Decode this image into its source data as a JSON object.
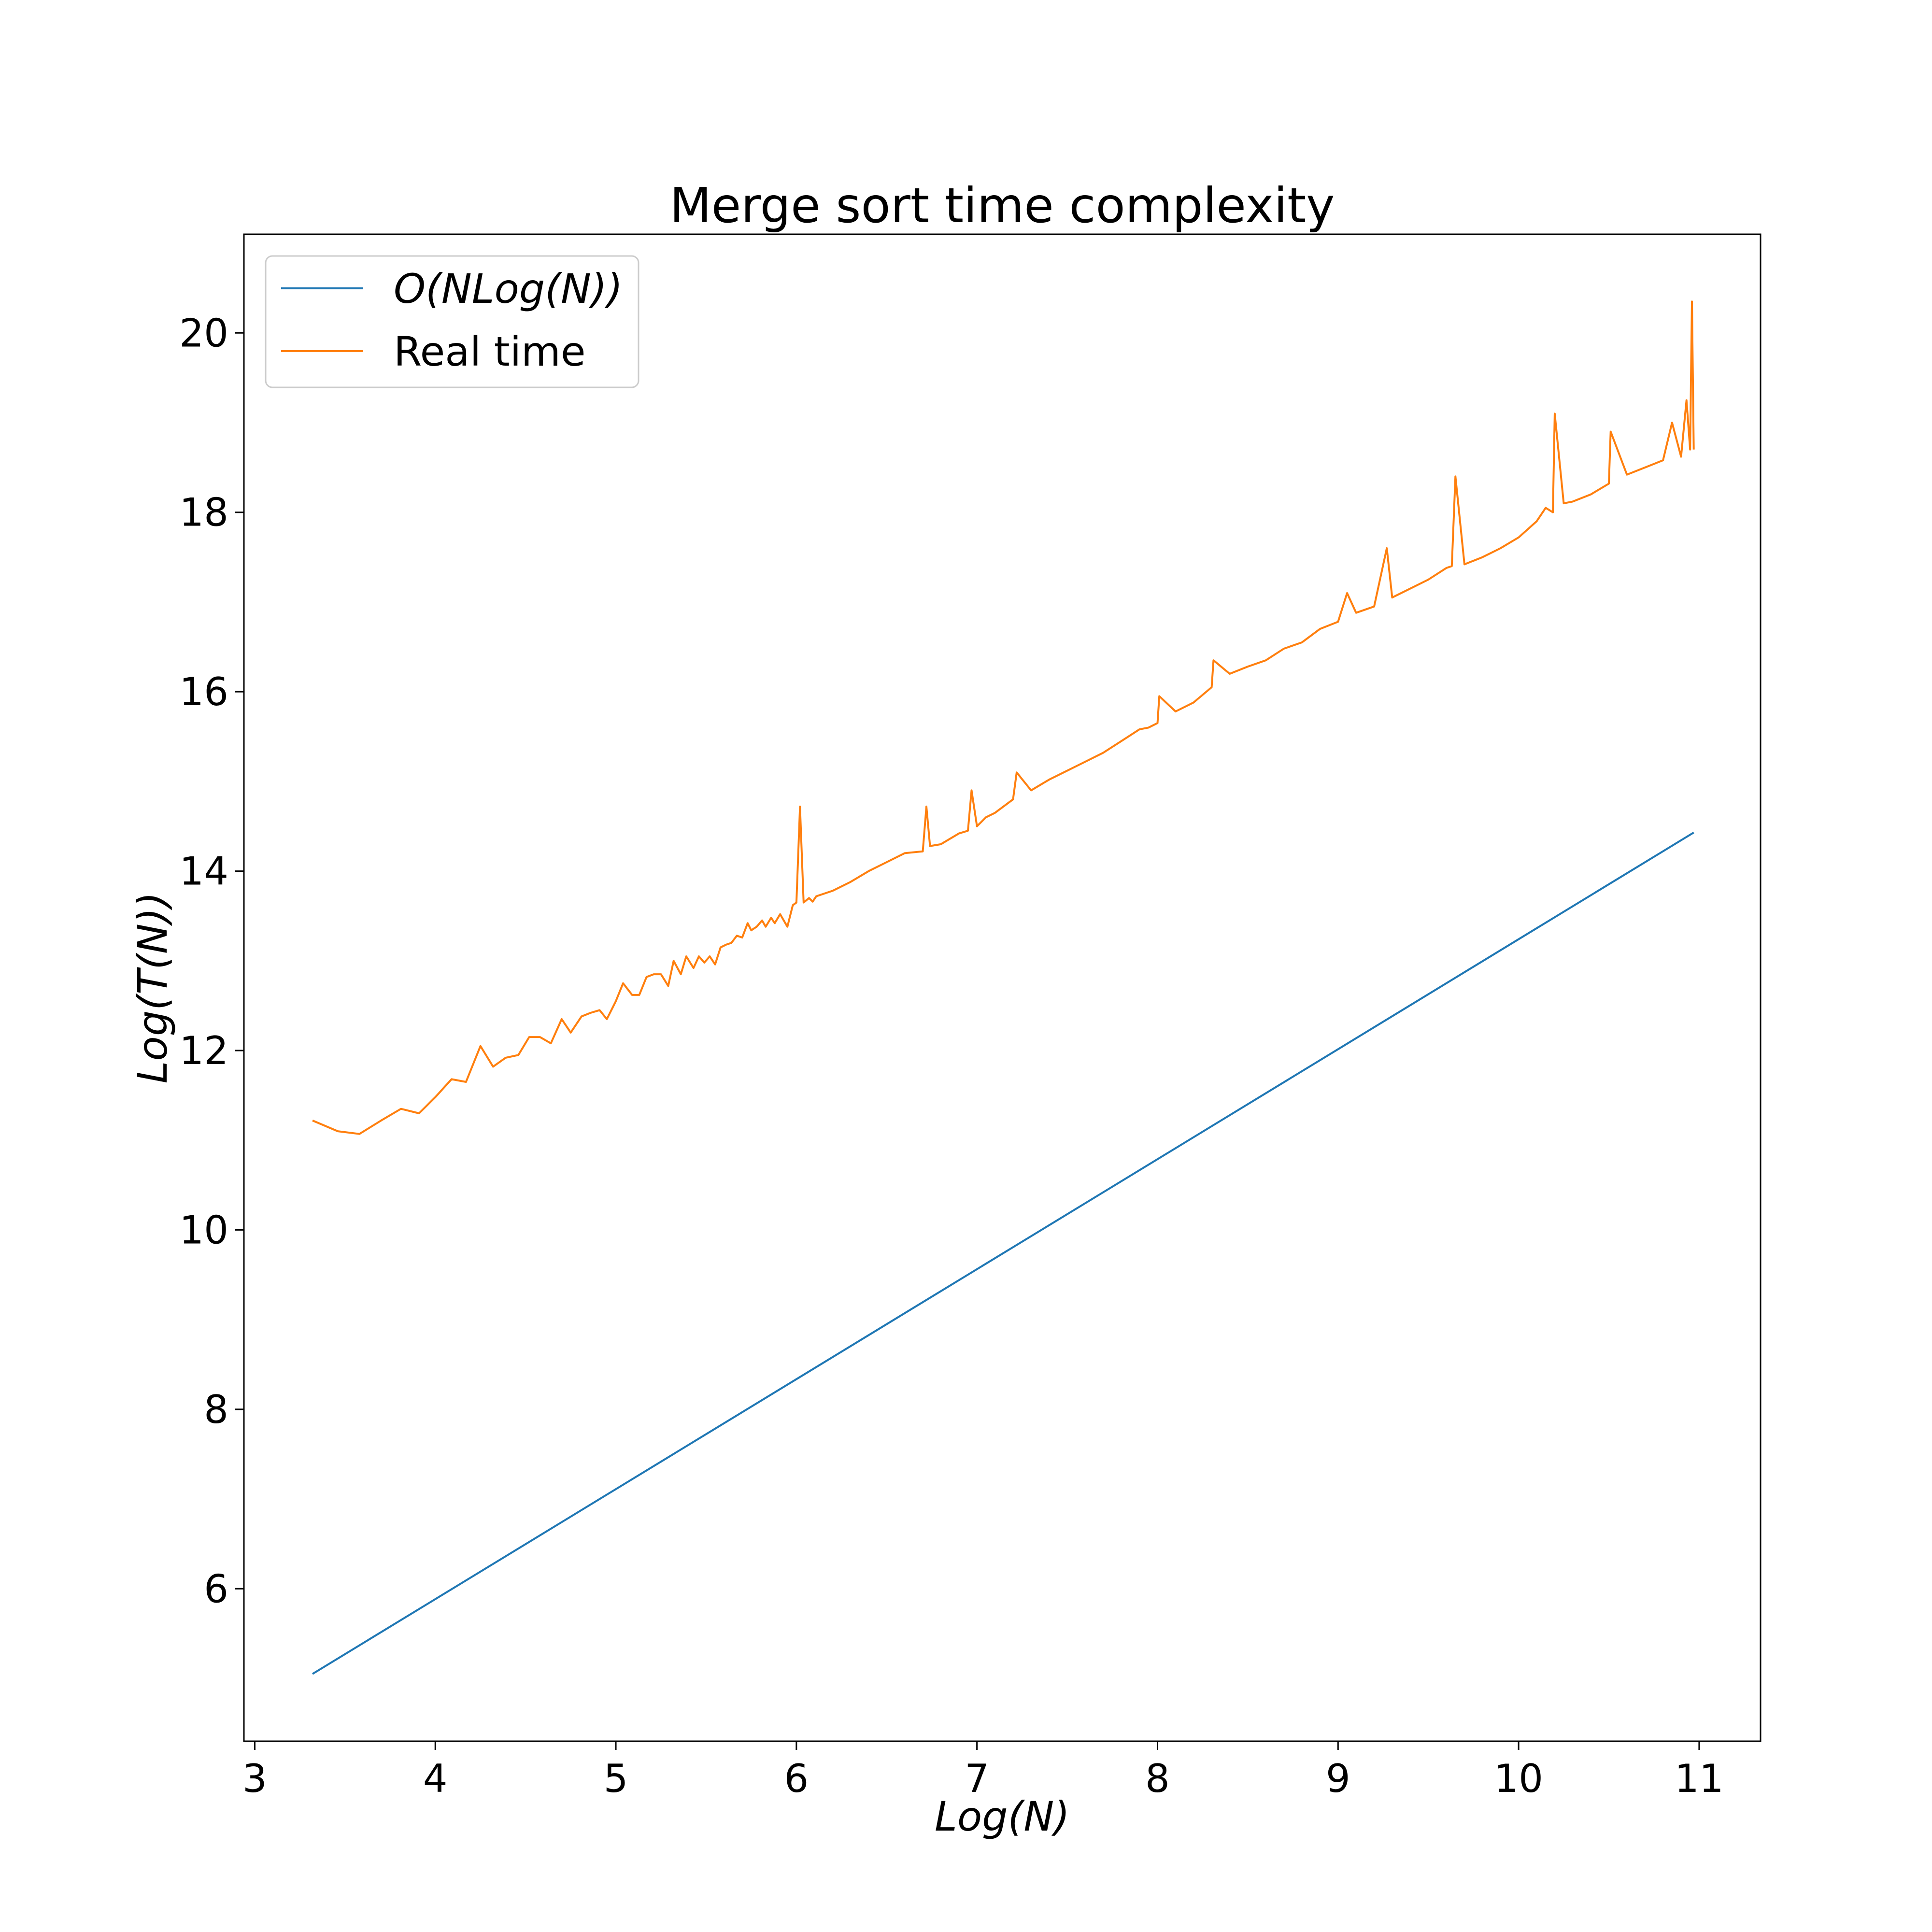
{
  "chart_data": {
    "type": "line",
    "title": "Merge sort time complexity",
    "xlabel": "Log(N)",
    "ylabel": "Log(T(N))",
    "xlim": [
      2.94,
      11.34
    ],
    "ylim": [
      4.3,
      21.1
    ],
    "xticks": [
      3,
      4,
      5,
      6,
      7,
      8,
      9,
      10,
      11
    ],
    "yticks": [
      6,
      8,
      10,
      12,
      14,
      16,
      18,
      20
    ],
    "grid": false,
    "legend_position": "top-left",
    "series": [
      {
        "name": "O(NLog(N))",
        "color": "#1f77b4",
        "x": [
          3.32,
          10.97
        ],
        "y": [
          5.05,
          14.43
        ]
      },
      {
        "name": "Real time",
        "color": "#ff7f0e",
        "x": [
          3.32,
          3.46,
          3.58,
          3.7,
          3.81,
          3.91,
          4.0,
          4.09,
          4.17,
          4.25,
          4.32,
          4.39,
          4.46,
          4.52,
          4.58,
          4.64,
          4.7,
          4.75,
          4.81,
          4.86,
          4.91,
          4.95,
          5.0,
          5.04,
          5.09,
          5.13,
          5.17,
          5.21,
          5.25,
          5.29,
          5.32,
          5.36,
          5.39,
          5.43,
          5.46,
          5.49,
          5.52,
          5.55,
          5.58,
          5.61,
          5.64,
          5.67,
          5.7,
          5.73,
          5.75,
          5.78,
          5.81,
          5.83,
          5.86,
          5.88,
          5.91,
          5.93,
          5.95,
          5.98,
          6.0,
          6.02,
          6.04,
          6.07,
          6.09,
          6.11,
          6.2,
          6.3,
          6.4,
          6.5,
          6.6,
          6.7,
          6.72,
          6.74,
          6.8,
          6.9,
          6.95,
          6.97,
          7.0,
          7.05,
          7.1,
          7.2,
          7.22,
          7.3,
          7.4,
          7.5,
          7.6,
          7.7,
          7.8,
          7.9,
          7.95,
          8.0,
          8.01,
          8.1,
          8.2,
          8.3,
          8.31,
          8.4,
          8.5,
          8.6,
          8.7,
          8.8,
          8.9,
          9.0,
          9.05,
          9.1,
          9.2,
          9.27,
          9.3,
          9.4,
          9.5,
          9.6,
          9.63,
          9.65,
          9.7,
          9.8,
          9.9,
          10.0,
          10.1,
          10.15,
          10.19,
          10.2,
          10.25,
          10.3,
          10.4,
          10.5,
          10.51,
          10.6,
          10.7,
          10.8,
          10.85,
          10.9,
          10.93,
          10.95,
          10.96,
          10.97
        ],
        "y": [
          11.22,
          11.1,
          11.07,
          11.22,
          11.35,
          11.3,
          11.48,
          11.68,
          11.65,
          12.05,
          11.82,
          11.92,
          11.95,
          12.15,
          12.15,
          12.08,
          12.35,
          12.2,
          12.38,
          12.42,
          12.45,
          12.35,
          12.55,
          12.75,
          12.62,
          12.62,
          12.82,
          12.85,
          12.85,
          12.72,
          13.0,
          12.85,
          13.05,
          12.92,
          13.05,
          12.98,
          13.05,
          12.96,
          13.15,
          13.18,
          13.2,
          13.28,
          13.26,
          13.42,
          13.34,
          13.38,
          13.45,
          13.38,
          13.48,
          13.42,
          13.52,
          13.45,
          13.38,
          13.62,
          13.65,
          14.72,
          13.65,
          13.7,
          13.66,
          13.72,
          13.78,
          13.88,
          14.0,
          14.1,
          14.2,
          14.22,
          14.72,
          14.28,
          14.3,
          14.42,
          14.45,
          14.9,
          14.5,
          14.6,
          14.65,
          14.8,
          15.1,
          14.9,
          15.02,
          15.12,
          15.22,
          15.32,
          15.45,
          15.58,
          15.6,
          15.65,
          15.95,
          15.78,
          15.88,
          16.05,
          16.35,
          16.2,
          16.28,
          16.35,
          16.48,
          16.55,
          16.7,
          16.78,
          17.1,
          16.88,
          16.95,
          17.6,
          17.05,
          17.15,
          17.25,
          17.38,
          17.4,
          18.4,
          17.42,
          17.5,
          17.6,
          17.72,
          17.9,
          18.05,
          18.0,
          19.1,
          18.1,
          18.12,
          18.2,
          18.32,
          18.9,
          18.42,
          18.5,
          18.58,
          19.0,
          18.62,
          19.25,
          18.7,
          20.35,
          18.7
        ]
      }
    ]
  }
}
